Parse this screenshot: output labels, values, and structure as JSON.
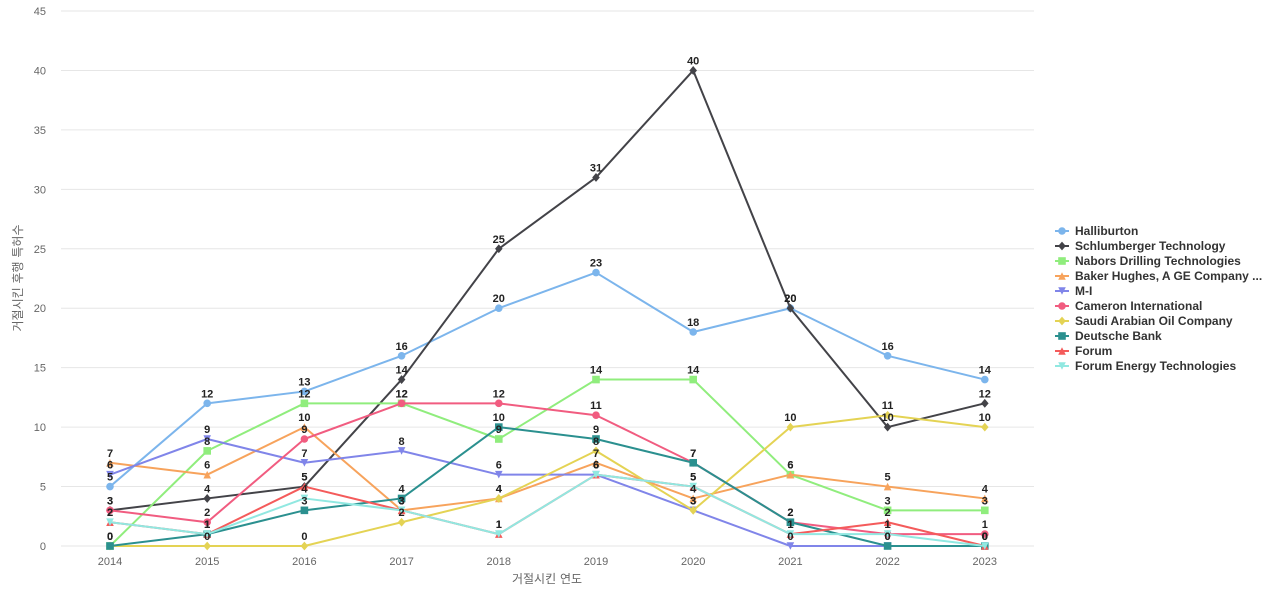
{
  "chart_data": {
    "type": "line",
    "xlabel": "거절시킨 연도",
    "ylabel": "거절시킨 후행 특허수",
    "x": [
      "2014",
      "2015",
      "2016",
      "2017",
      "2018",
      "2019",
      "2020",
      "2021",
      "2022",
      "2023"
    ],
    "ylim": [
      0,
      45
    ],
    "yticks": [
      0,
      5,
      10,
      15,
      20,
      25,
      30,
      35,
      40,
      45
    ],
    "grid": true,
    "legend_position": "right",
    "series": [
      {
        "name": "Halliburton",
        "color": "#7cb5ec",
        "marker": "circle",
        "values": [
          5,
          12,
          13,
          16,
          20,
          23,
          18,
          20,
          16,
          14
        ]
      },
      {
        "name": "Schlumberger Technology",
        "color": "#434348",
        "marker": "diamond",
        "values": [
          3,
          4,
          5,
          14,
          25,
          31,
          40,
          20,
          10,
          12
        ]
      },
      {
        "name": "Nabors Drilling Technologies",
        "color": "#90ed7d",
        "marker": "square",
        "values": [
          0,
          8,
          12,
          12,
          9,
          14,
          14,
          6,
          3,
          3
        ]
      },
      {
        "name": "Baker Hughes, A GE Company ...",
        "color": "#f7a35c",
        "marker": "triangle",
        "values": [
          7,
          6,
          10,
          3,
          4,
          7,
          4,
          6,
          5,
          4
        ]
      },
      {
        "name": "M-I",
        "color": "#8085e9",
        "marker": "triangle-down",
        "values": [
          6,
          9,
          7,
          8,
          6,
          6,
          3,
          0,
          0,
          0
        ]
      },
      {
        "name": "Cameron International",
        "color": "#f15c80",
        "marker": "circle",
        "values": [
          3,
          2,
          9,
          12,
          12,
          11,
          7,
          2,
          1,
          1
        ]
      },
      {
        "name": "Saudi Arabian Oil Company",
        "color": "#e4d354",
        "marker": "diamond",
        "values": [
          0,
          0,
          0,
          2,
          4,
          8,
          3,
          10,
          11,
          10
        ]
      },
      {
        "name": "Deutsche Bank",
        "color": "#2b908f",
        "marker": "square",
        "values": [
          0,
          1,
          3,
          4,
          10,
          9,
          7,
          2,
          0,
          0
        ]
      },
      {
        "name": "Forum",
        "color": "#f45b5b",
        "marker": "triangle",
        "values": [
          2,
          1,
          5,
          3,
          1,
          6,
          5,
          1,
          2,
          0
        ]
      },
      {
        "name": "Forum Energy Technologies",
        "color": "#91e8e1",
        "marker": "triangle-down",
        "values": [
          2,
          1,
          4,
          3,
          1,
          6,
          5,
          1,
          1,
          0
        ]
      }
    ]
  }
}
